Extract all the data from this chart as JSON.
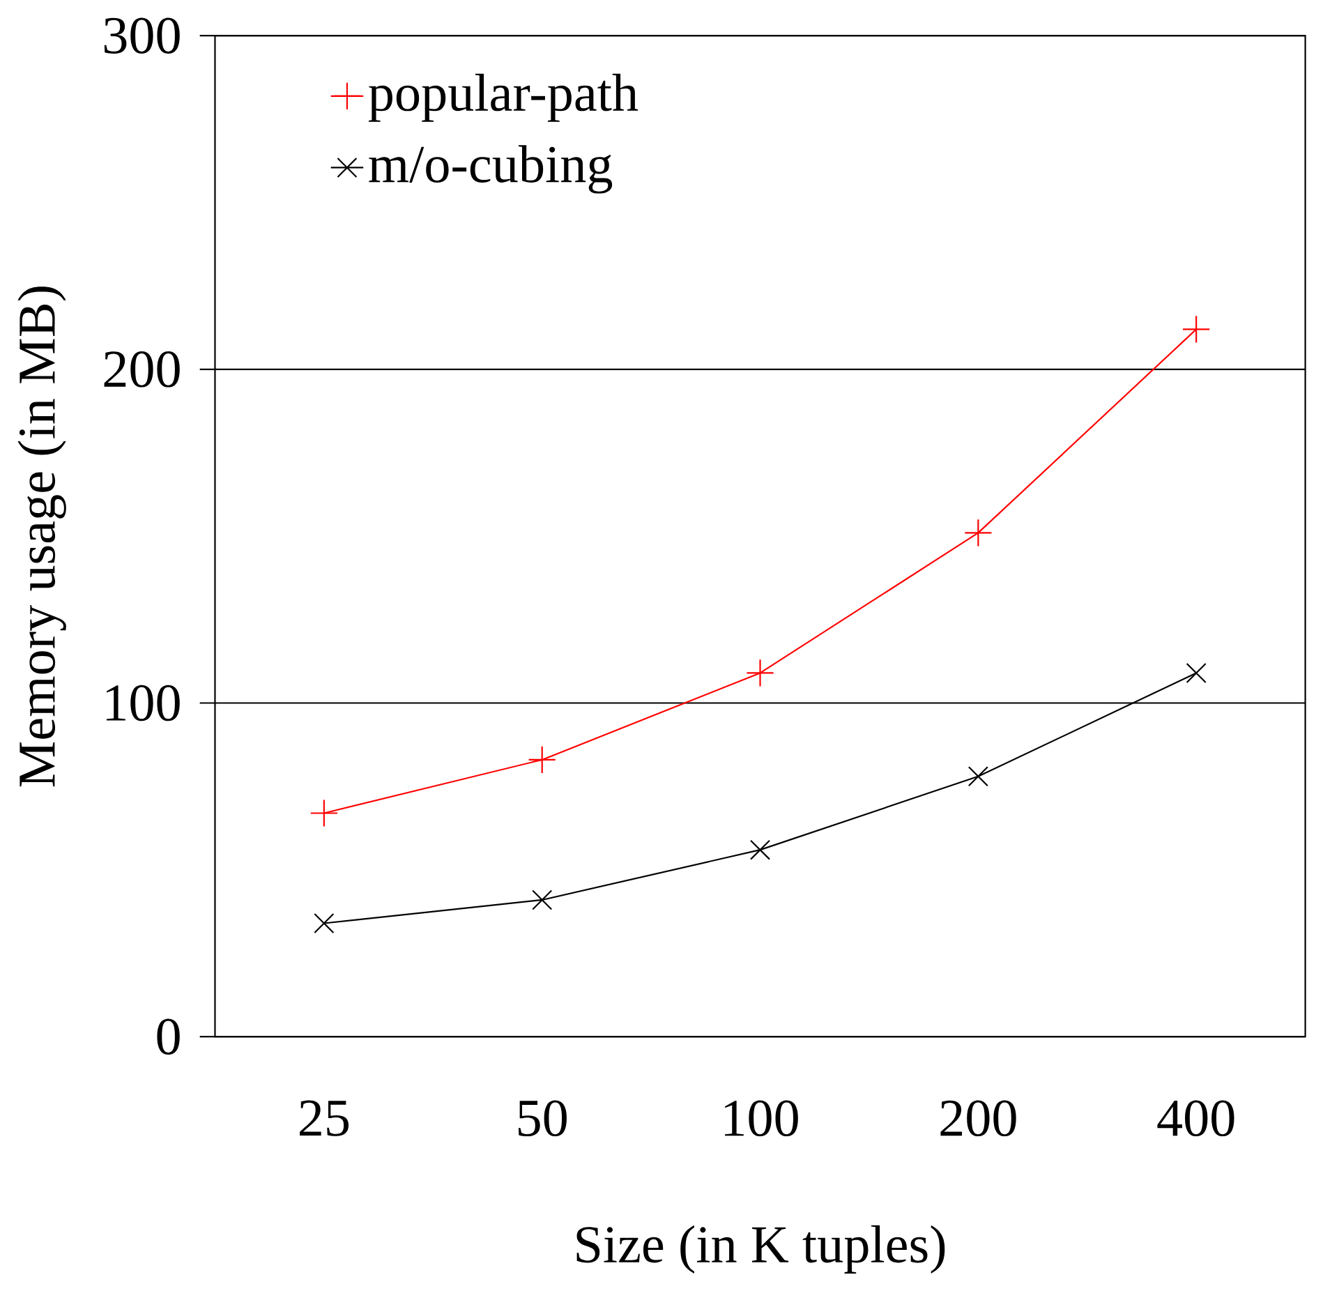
{
  "chart_data": {
    "type": "line",
    "xlabel": "Size (in K tuples)",
    "ylabel": "Memory usage (in MB)",
    "categories": [
      "25",
      "50",
      "100",
      "200",
      "400"
    ],
    "series": [
      {
        "name": "popular-path",
        "color": "#ff0000",
        "marker": "cross",
        "values": [
          67,
          83,
          109,
          151,
          212
        ]
      },
      {
        "name": "m/o-cubing",
        "color": "#000000",
        "marker": "x",
        "values": [
          34,
          41,
          56,
          78,
          109
        ]
      }
    ],
    "ylim": [
      0,
      300
    ],
    "yticks": [
      0,
      100,
      200,
      300
    ],
    "grid": "y",
    "legend": "top left"
  }
}
